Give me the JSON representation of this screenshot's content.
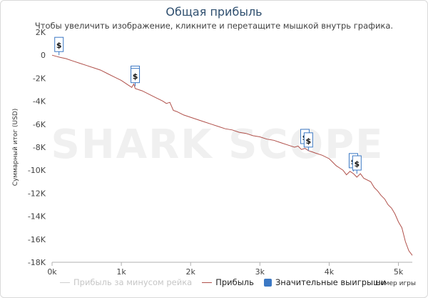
{
  "chart_data": {
    "type": "line",
    "title": "Общая прибыль",
    "subtitle": "Чтобы увеличить изображение, кликните и перетащите мышкой внутрь графика.",
    "ylabel": "Суммарный итог (USD)",
    "xlabel": "Номер игры",
    "watermark": "SHARK SCOPE",
    "xlim": [
      0,
      5200
    ],
    "ylim": [
      -18000,
      2000
    ],
    "xticks": [
      0,
      1000,
      2000,
      3000,
      4000,
      5000
    ],
    "xtick_labels": [
      "0k",
      "1k",
      "2k",
      "3k",
      "4k",
      "5k"
    ],
    "yticks": [
      2000,
      0,
      -2000,
      -4000,
      -6000,
      -8000,
      -10000,
      -12000,
      -14000,
      -16000,
      -18000
    ],
    "ytick_labels": [
      "2K",
      "0",
      "-2K",
      "-4K",
      "-6K",
      "-8K",
      "-10K",
      "-12K",
      "-14K",
      "-16K",
      "-18K"
    ],
    "grid": false,
    "legend_position": "bottom",
    "series": [
      {
        "name": "Прибыль за минусом рейка",
        "color": "#d6d6d6",
        "visible": false,
        "x": [],
        "y": []
      },
      {
        "name": "Прибыль",
        "color": "#b0504a",
        "x": [
          0,
          60,
          120,
          200,
          300,
          400,
          500,
          600,
          700,
          800,
          900,
          1000,
          1100,
          1150,
          1180,
          1200,
          1250,
          1300,
          1400,
          1500,
          1600,
          1650,
          1700,
          1750,
          1800,
          1900,
          2000,
          2100,
          2200,
          2300,
          2400,
          2500,
          2600,
          2700,
          2800,
          2900,
          3000,
          3100,
          3200,
          3300,
          3400,
          3500,
          3550,
          3600,
          3650,
          3700,
          3750,
          3800,
          3900,
          4000,
          4050,
          4100,
          4150,
          4200,
          4250,
          4300,
          4350,
          4400,
          4450,
          4500,
          4600,
          4650,
          4700,
          4750,
          4800,
          4850,
          4900,
          4950,
          5000,
          5050,
          5100,
          5150,
          5200
        ],
        "y": [
          0,
          -100,
          -200,
          -300,
          -500,
          -700,
          -900,
          -1100,
          -1300,
          -1600,
          -1900,
          -2200,
          -2600,
          -2800,
          -2500,
          -2900,
          -3000,
          -3100,
          -3400,
          -3700,
          -4000,
          -4200,
          -4100,
          -4800,
          -4900,
          -5200,
          -5400,
          -5600,
          -5800,
          -6000,
          -6200,
          -6400,
          -6500,
          -6700,
          -6800,
          -7000,
          -7100,
          -7300,
          -7400,
          -7600,
          -7800,
          -8000,
          -7900,
          -8200,
          -8100,
          -8300,
          -8400,
          -8500,
          -8700,
          -9000,
          -9300,
          -9600,
          -9800,
          -10000,
          -10400,
          -10100,
          -10300,
          -10600,
          -10300,
          -10700,
          -11000,
          -11500,
          -11800,
          -12200,
          -12500,
          -13000,
          -13300,
          -13800,
          -14500,
          -15000,
          -16200,
          -17000,
          -17400
        ]
      }
    ],
    "annotations": [
      {
        "label": "$",
        "x": 100,
        "y": 0
      },
      {
        "label": "$",
        "x": 1200,
        "y": -2500
      },
      {
        "label": "$",
        "x": 1200,
        "y": -2700
      },
      {
        "label": "$",
        "x": 3650,
        "y": -8000
      },
      {
        "label": "$",
        "x": 3700,
        "y": -8300
      },
      {
        "label": "$",
        "x": 4350,
        "y": -10100
      },
      {
        "label": "$",
        "x": 4400,
        "y": -10300
      }
    ],
    "legend": [
      {
        "label": "Прибыль за минусом рейка",
        "color": "#cfcfcf",
        "kind": "line",
        "faded": true
      },
      {
        "label": "Прибыль",
        "color": "#b0504a",
        "kind": "line",
        "faded": false
      },
      {
        "label": "Значительные выигрыши",
        "color": "#3b78c4",
        "kind": "box",
        "faded": false
      }
    ]
  }
}
